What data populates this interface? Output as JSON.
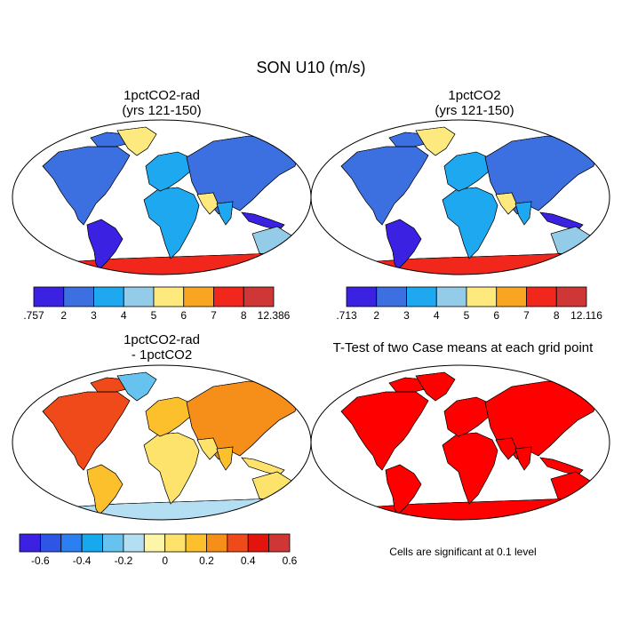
{
  "title": "SON U10 (m/s)",
  "panels": [
    {
      "title_line1": "1pctCO2-rad",
      "title_line2": "(yrs 121-150)"
    },
    {
      "title_line1": "1pctCO2",
      "title_line2": "(yrs 121-150)"
    },
    {
      "title_line1": "1pctCO2-rad",
      "title_line2": "- 1pctCO2"
    },
    {
      "title_line1": "T-Test of two Case means at each grid point",
      "title_line2": ""
    }
  ],
  "note": "Cells are significant at 0.1 level",
  "chart_data": [
    {
      "type": "heatmap",
      "title": "1pctCO2-rad (yrs 121-150)",
      "colorbar": {
        "colors": [
          "#3b22e3",
          "#3c6fe0",
          "#1ea8f0",
          "#93cbe8",
          "#fde97d",
          "#f8a621",
          "#f2271c",
          "#cf3636"
        ],
        "tick_labels": [
          ".757",
          "2",
          "3",
          "4",
          "5",
          "6",
          "7",
          "8",
          "12.386"
        ]
      }
    },
    {
      "type": "heatmap",
      "title": "1pctCO2 (yrs 121-150)",
      "colorbar": {
        "colors": [
          "#3b22e3",
          "#3c6fe0",
          "#1ea8f0",
          "#93cbe8",
          "#fde97d",
          "#f8a621",
          "#f2271c",
          "#cf3636"
        ],
        "tick_labels": [
          ".713",
          "2",
          "3",
          "4",
          "5",
          "6",
          "7",
          "8",
          "12.116"
        ]
      }
    },
    {
      "type": "heatmap",
      "title": "1pctCO2-rad - 1pctCO2",
      "colorbar": {
        "colors": [
          "#3b22e3",
          "#2e56e6",
          "#2b7ff0",
          "#16a9ee",
          "#66c2ee",
          "#b4dff2",
          "#fdf6a8",
          "#fde36c",
          "#fbc02c",
          "#f58f1a",
          "#f04a1a",
          "#e3140e",
          "#cf3636"
        ],
        "tick_labels": [
          "-0.6",
          "-0.4",
          "-0.2",
          "0",
          "0.2",
          "0.4",
          "0.6"
        ]
      }
    },
    {
      "type": "heatmap",
      "title": "T-Test of two Case means at each grid point",
      "significant_color": "#ff0000"
    }
  ]
}
